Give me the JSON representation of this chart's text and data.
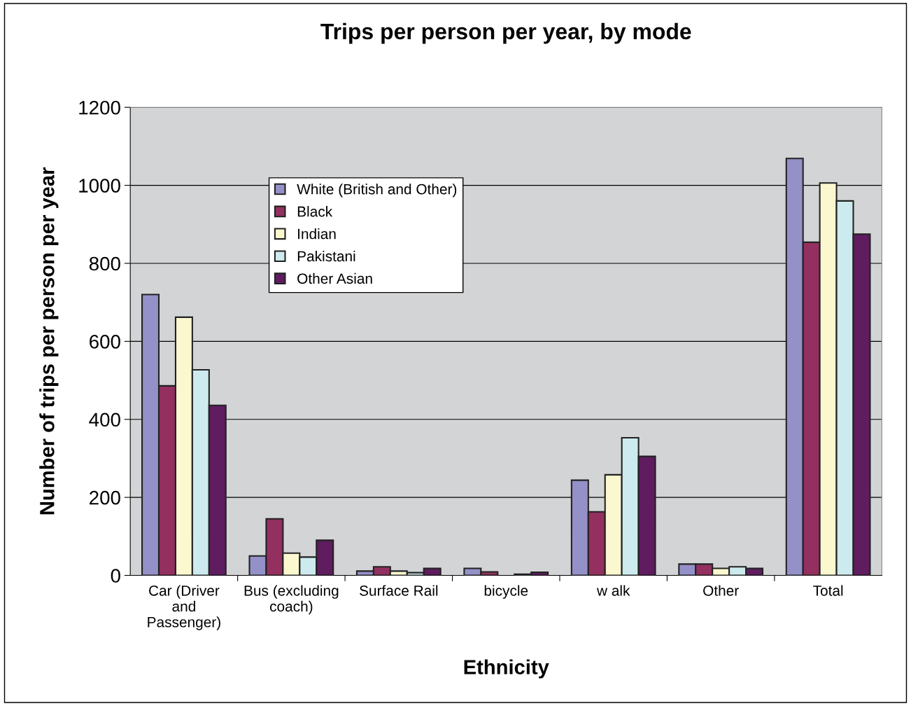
{
  "chart_data": {
    "type": "bar",
    "title": "Trips per person per year, by mode",
    "xlabel": "Ethnicity",
    "ylabel": "Number of trips per person per year",
    "categories": [
      "Car (Driver\nand\nPassenger)",
      "Bus (excluding\ncoach)",
      "Surface Rail",
      "bicycle",
      "w alk",
      "Other",
      "Total"
    ],
    "series": [
      {
        "name": "White (British and Other)",
        "color": "#9490c8",
        "values": [
          720,
          50,
          11,
          18,
          244,
          29,
          1069
        ]
      },
      {
        "name": "Black",
        "color": "#93305f",
        "values": [
          486,
          145,
          22,
          9,
          163,
          29,
          854
        ]
      },
      {
        "name": "Indian",
        "color": "#fbf8d0",
        "values": [
          662,
          57,
          11,
          null,
          258,
          18,
          1006
        ]
      },
      {
        "name": "Pakistani",
        "color": "#cdeaee",
        "values": [
          527,
          47,
          7,
          3,
          353,
          22,
          960
        ]
      },
      {
        "name": "Other Asian",
        "color": "#5f1c5f",
        "values": [
          436,
          90,
          18,
          8,
          305,
          18,
          875
        ]
      }
    ],
    "ylim": [
      0,
      1200
    ],
    "yticks": [
      0,
      200,
      400,
      600,
      800,
      1000,
      1200
    ],
    "grid": "y",
    "legend": "top left"
  }
}
